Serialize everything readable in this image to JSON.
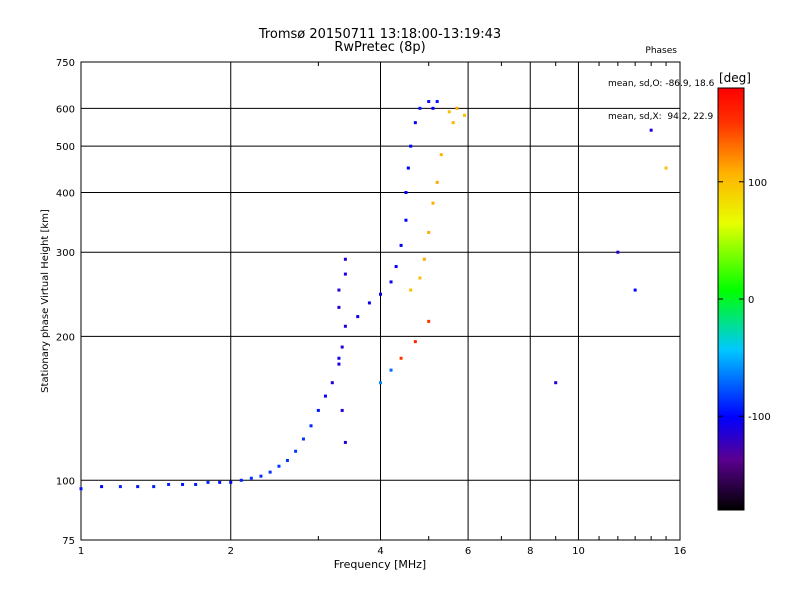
{
  "title": {
    "line1": "Tromsø 20150711 13:18:00-13:19:43",
    "line2": "RwPretec (8p)"
  },
  "phases_box": {
    "heading": "Phases",
    "line_o": "mean, sd,O: -86.9, 18.6",
    "line_x": "mean, sd,X:  94.2, 22.9"
  },
  "colorbar": {
    "label": "[deg]",
    "ticks": [
      "100",
      "0",
      "-100"
    ],
    "tick_values": [
      100,
      0,
      -100
    ],
    "range": [
      -180,
      180
    ]
  },
  "chart_data": {
    "type": "scatter",
    "xlabel": "Frequency [MHz]",
    "ylabel": "Stationary phase Virtual Height [km]",
    "xscale": "log",
    "yscale": "log",
    "xlim": [
      1,
      16
    ],
    "ylim": [
      75,
      750
    ],
    "x_ticks": [
      1,
      2,
      4,
      6,
      8,
      10,
      16
    ],
    "x_tick_labels": [
      "1",
      "2",
      "4",
      "6",
      "8",
      "10",
      "16"
    ],
    "y_ticks": [
      75,
      100,
      200,
      300,
      400,
      500,
      600,
      750
    ],
    "y_tick_labels": [
      "75",
      "100",
      "200",
      "300",
      "400",
      "500",
      "600",
      "750"
    ],
    "grid": true,
    "points": [
      [
        1.0,
        96,
        -95
      ],
      [
        1.1,
        97,
        -100
      ],
      [
        1.2,
        97,
        -90
      ],
      [
        1.3,
        97,
        -95
      ],
      [
        1.4,
        97,
        -92
      ],
      [
        1.5,
        98,
        -90
      ],
      [
        1.6,
        98,
        -95
      ],
      [
        1.7,
        98,
        -92
      ],
      [
        1.8,
        99,
        -90
      ],
      [
        1.9,
        99,
        -95
      ],
      [
        2.0,
        99,
        -98
      ],
      [
        2.1,
        100,
        -90
      ],
      [
        2.2,
        101,
        -85
      ],
      [
        2.3,
        102,
        -88
      ],
      [
        2.4,
        104,
        -85
      ],
      [
        2.5,
        107,
        -85
      ],
      [
        2.6,
        110,
        -85
      ],
      [
        2.7,
        115,
        -85
      ],
      [
        2.8,
        122,
        -85
      ],
      [
        2.9,
        130,
        -90
      ],
      [
        3.0,
        140,
        -95
      ],
      [
        3.1,
        150,
        -105
      ],
      [
        3.2,
        160,
        -110
      ],
      [
        3.3,
        175,
        -110
      ],
      [
        3.35,
        190,
        -112
      ],
      [
        3.4,
        210,
        -112
      ],
      [
        3.3,
        230,
        -112
      ],
      [
        3.3,
        250,
        -115
      ],
      [
        3.4,
        270,
        -110
      ],
      [
        3.4,
        290,
        -112
      ],
      [
        3.3,
        180,
        -110
      ],
      [
        3.35,
        140,
        -110
      ],
      [
        3.4,
        120,
        -112
      ],
      [
        3.6,
        220,
        -105
      ],
      [
        3.8,
        235,
        -105
      ],
      [
        4.0,
        245,
        -105
      ],
      [
        4.2,
        260,
        -105
      ],
      [
        4.3,
        280,
        -100
      ],
      [
        4.4,
        310,
        -100
      ],
      [
        4.5,
        350,
        -100
      ],
      [
        4.5,
        400,
        -100
      ],
      [
        4.55,
        450,
        -100
      ],
      [
        4.6,
        500,
        -100
      ],
      [
        4.7,
        560,
        -100
      ],
      [
        4.8,
        600,
        -95
      ],
      [
        5.0,
        620,
        -95
      ],
      [
        5.1,
        600,
        -100
      ],
      [
        5.2,
        620,
        -95
      ],
      [
        5.5,
        590,
        100
      ],
      [
        5.7,
        600,
        110
      ],
      [
        5.9,
        580,
        100
      ],
      [
        5.6,
        560,
        105
      ],
      [
        5.3,
        480,
        105
      ],
      [
        5.2,
        420,
        110
      ],
      [
        5.1,
        380,
        110
      ],
      [
        5.0,
        330,
        110
      ],
      [
        4.9,
        290,
        110
      ],
      [
        4.8,
        265,
        100
      ],
      [
        4.6,
        250,
        100
      ],
      [
        5.0,
        215,
        150
      ],
      [
        4.7,
        195,
        160
      ],
      [
        4.4,
        180,
        150
      ],
      [
        4.2,
        170,
        -70
      ],
      [
        4.0,
        160,
        -60
      ],
      [
        9.0,
        160,
        -110
      ],
      [
        12.0,
        300,
        -110
      ],
      [
        14.0,
        540,
        -110
      ],
      [
        15.0,
        450,
        100
      ],
      [
        13.0,
        250,
        -100
      ]
    ]
  }
}
